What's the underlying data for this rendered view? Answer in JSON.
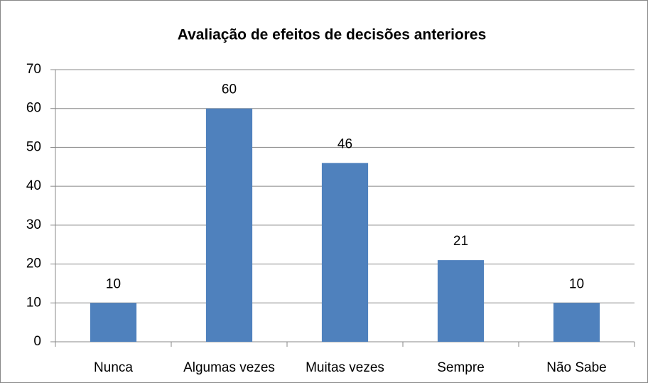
{
  "chart_data": {
    "type": "bar",
    "title": "Avaliação de efeitos de decisões anteriores",
    "categories": [
      "Nunca",
      "Algumas vezes",
      "Muitas vezes",
      "Sempre",
      "Não Sabe"
    ],
    "values": [
      10,
      60,
      46,
      21,
      10
    ],
    "color": "#4f81bd",
    "ylim": [
      0,
      70
    ],
    "yticks": [
      0,
      10,
      20,
      30,
      40,
      50,
      60,
      70
    ],
    "grid": true,
    "data_labels": true
  }
}
